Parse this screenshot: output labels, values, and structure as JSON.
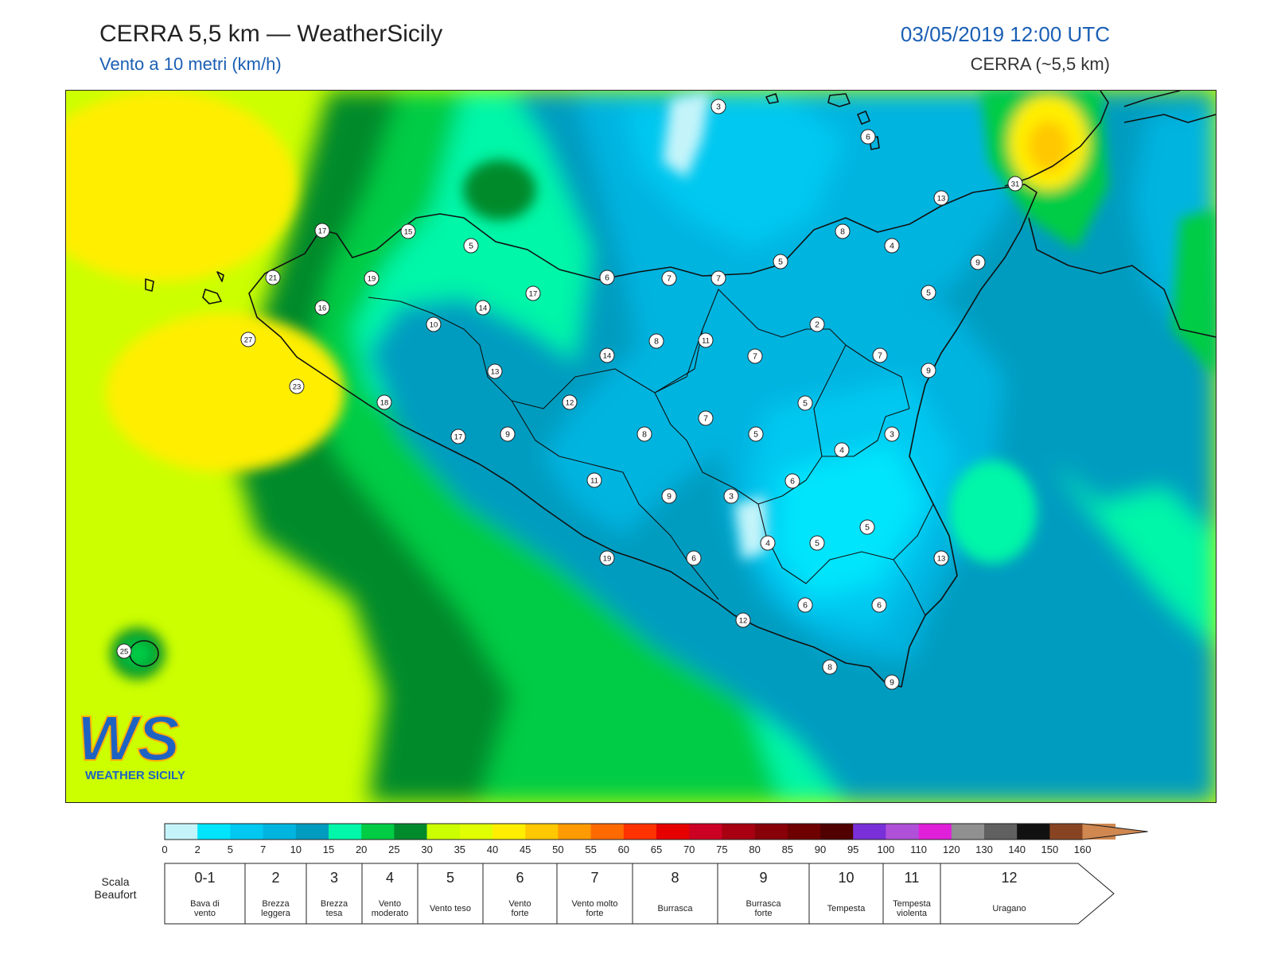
{
  "header": {
    "title": "CERRA 5,5 km — WeatherSicily",
    "subtitle": "Vento a 10 metri (km/h)",
    "datetime": "03/05/2019 12:00 UTC",
    "model": "CERRA (~5,5 km)"
  },
  "logo": {
    "letters": "WS",
    "text": "WEATHER SICILY"
  },
  "colors": {
    "land_outline": "#111111",
    "accent_blue": "#1a5fb4"
  },
  "colorbar": {
    "ticks": [
      "0",
      "2",
      "5",
      "7",
      "10",
      "15",
      "20",
      "25",
      "30",
      "35",
      "40",
      "45",
      "50",
      "55",
      "60",
      "65",
      "70",
      "75",
      "80",
      "85",
      "90",
      "95",
      "100",
      "110",
      "120",
      "130",
      "140",
      "150",
      "160"
    ],
    "colors": [
      "#c4f4fa",
      "#00e4fc",
      "#00c8f0",
      "#00b4e0",
      "#009cc0",
      "#00f6a8",
      "#00cc44",
      "#008a2c",
      "#ccff00",
      "#e0ff00",
      "#ffee00",
      "#ffc800",
      "#ff9a00",
      "#ff6a00",
      "#ff3200",
      "#e60000",
      "#cc0022",
      "#a80010",
      "#880008",
      "#6e0000",
      "#500000",
      "#7a30d8",
      "#b050d8",
      "#e020d8",
      "#909090",
      "#606060",
      "#111111",
      "#884422",
      "#d08850"
    ]
  },
  "beaufort": {
    "title_line1": "Scala",
    "title_line2": "Beaufort",
    "cells": [
      {
        "num": "0-1",
        "line1": "Bava di",
        "line2": "vento"
      },
      {
        "num": "2",
        "line1": "Brezza",
        "line2": "leggera"
      },
      {
        "num": "3",
        "line1": "Brezza",
        "line2": "tesa"
      },
      {
        "num": "4",
        "line1": "Vento",
        "line2": "moderato"
      },
      {
        "num": "5",
        "line1": "Vento teso",
        "line2": ""
      },
      {
        "num": "6",
        "line1": "Vento",
        "line2": "forte"
      },
      {
        "num": "7",
        "line1": "Vento molto",
        "line2": "forte"
      },
      {
        "num": "8",
        "line1": "Burrasca",
        "line2": ""
      },
      {
        "num": "9",
        "line1": "Burrasca",
        "line2": "forte"
      },
      {
        "num": "10",
        "line1": "Tempesta",
        "line2": ""
      },
      {
        "num": "11",
        "line1": "Tempesta",
        "line2": "violenta"
      },
      {
        "num": "12",
        "line1": "Uragano",
        "line2": ""
      }
    ]
  },
  "wind_markers": [
    "3",
    "6",
    "13",
    "31",
    "17",
    "15",
    "5",
    "21",
    "19",
    "16",
    "27",
    "23",
    "18",
    "17",
    "13",
    "14",
    "10",
    "17",
    "6",
    "7",
    "7",
    "5",
    "8",
    "4",
    "9",
    "5",
    "2",
    "11",
    "8",
    "14",
    "7",
    "7",
    "9",
    "12",
    "8",
    "9",
    "7",
    "5",
    "5",
    "4",
    "3",
    "6",
    "11",
    "9",
    "3",
    "13",
    "19",
    "6",
    "4",
    "5",
    "5",
    "13",
    "12",
    "6",
    "6",
    "8",
    "9",
    "25"
  ]
}
